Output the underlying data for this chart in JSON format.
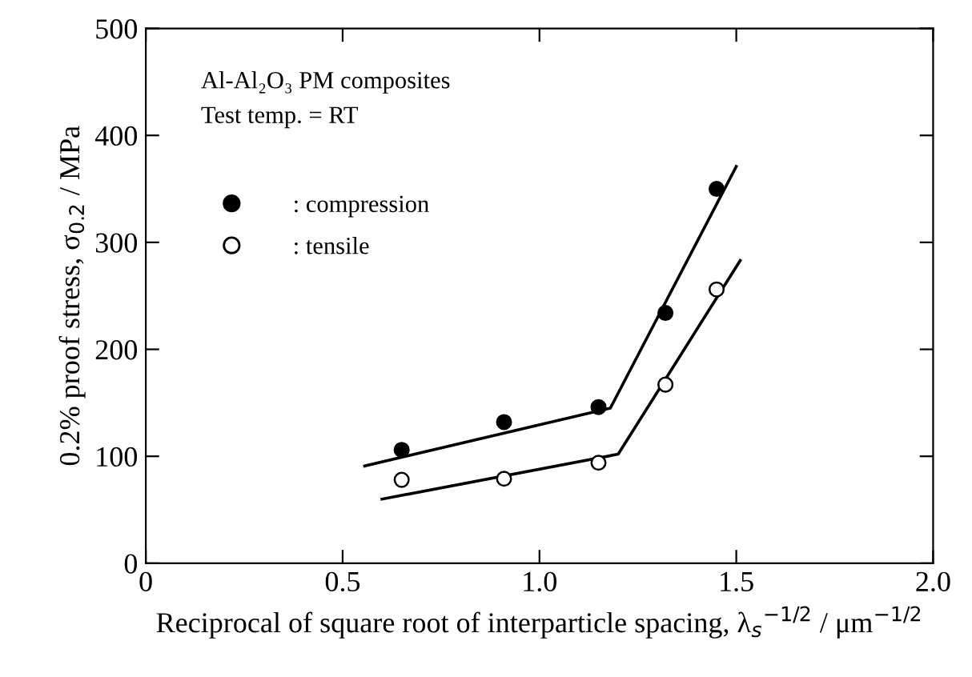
{
  "chart_data": {
    "type": "scatter",
    "xlabel": "Reciprocal of square root of interparticle spacing, λ$_{s}$$^{−1/2}$ / μm$^{−1/2}$",
    "ylabel": "0.2% proof stress, σ$_{0.2}$ / MPa",
    "annotations": [
      "Al-Al₂O₃ PM composites",
      "Test temp. = RT"
    ],
    "x": [
      0.65,
      0.91,
      1.15,
      1.32,
      1.45
    ],
    "series": [
      {
        "name": ": compression",
        "color": "#000000",
        "marker": "circle",
        "values": [
          106,
          132,
          146,
          234,
          350
        ]
      },
      {
        "name": ": tensile",
        "color": "#ffffff",
        "marker": "circle",
        "values": [
          78,
          79,
          94,
          167,
          256
        ]
      },
      {
        "color": "#000000",
        "type": "line",
        "marker": "none",
        "x": [
          0.556,
          1.18,
          1.5
        ],
        "values": [
          91,
          145,
          371
        ]
      },
      {
        "color": "#000000",
        "type": "line",
        "marker": "none",
        "x": [
          0.6,
          1.2,
          1.51
        ],
        "values": [
          60,
          102,
          283
        ]
      }
    ],
    "xlim": [
      0,
      2.0
    ],
    "xticks": [
      0,
      0.5,
      {
        "value": 1.0,
        "label": "1.0"
      },
      1.5,
      {
        "value": 2.0,
        "label": "2.0"
      }
    ],
    "ylim": [
      0,
      500
    ],
    "yticks": [
      0,
      100,
      200,
      300,
      400,
      500
    ],
    "grid": false,
    "legend": "top left",
    "line_style": "solid"
  }
}
